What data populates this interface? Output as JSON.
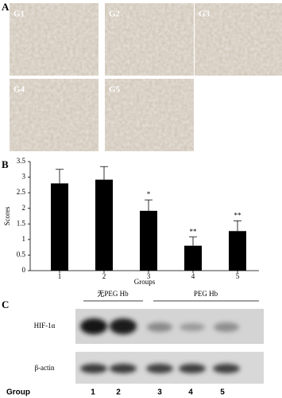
{
  "panel_labels": [
    "A",
    "B",
    "C"
  ],
  "panel_a": {
    "images": [
      "G1",
      "G2",
      "G3",
      "G4",
      "G5"
    ]
  },
  "chart_data": {
    "type": "bar",
    "categories": [
      "1",
      "2",
      "3",
      "4",
      "5"
    ],
    "values": [
      2.8,
      2.92,
      1.92,
      0.8,
      1.27
    ],
    "errors": [
      0.45,
      0.42,
      0.35,
      0.28,
      0.33
    ],
    "color": "#000000",
    "ylim": [
      0,
      3.5
    ],
    "yticks": [
      0,
      0.5,
      1,
      1.5,
      2,
      2.5,
      3,
      3.5
    ],
    "y_label": "Scores",
    "x_label": "Groups",
    "annotations": [
      {
        "text": "*",
        "x": "3"
      },
      {
        "text": "**",
        "x": "4"
      },
      {
        "text": "**",
        "x": "5"
      }
    ]
  },
  "panel_c": {
    "groups": [
      {
        "label": "无PEG Hb"
      },
      {
        "label": "PEG Hb"
      }
    ],
    "rows": [
      "HIF-1α",
      "β-actin"
    ],
    "lane_title": "Group",
    "lanes": [
      "1",
      "2",
      "3",
      "4",
      "5"
    ]
  }
}
